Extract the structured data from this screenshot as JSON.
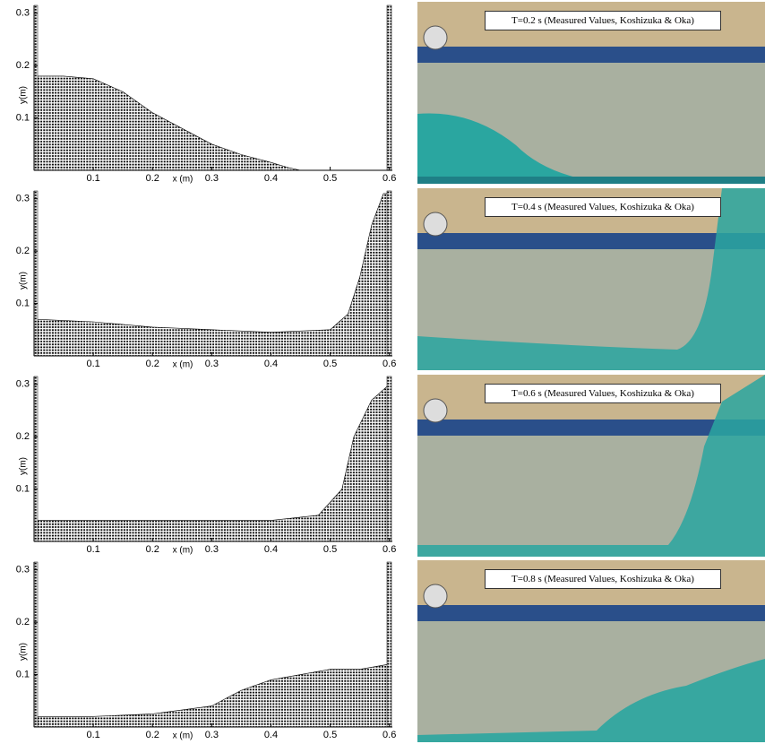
{
  "chart_data": [
    {
      "type": "area",
      "x_label": "x (m)",
      "y_label": "y(m)",
      "x": [
        0,
        0.05,
        0.1,
        0.15,
        0.2,
        0.25,
        0.3,
        0.35,
        0.4,
        0.43,
        0.45
      ],
      "values": [
        0.18,
        0.18,
        0.175,
        0.15,
        0.11,
        0.08,
        0.05,
        0.03,
        0.015,
        0.005,
        0
      ],
      "color": "#000000",
      "xlim": [
        0,
        0.605
      ],
      "ylim": [
        0,
        0.315
      ],
      "xticks": [
        0.1,
        0.2,
        0.3,
        0.4,
        0.5,
        0.6
      ],
      "yticks": [
        0.1,
        0.2,
        0.3
      ]
    },
    {
      "type": "area",
      "x_label": "x (m)",
      "y_label": "y(m)",
      "x": [
        0,
        0.1,
        0.2,
        0.3,
        0.4,
        0.5,
        0.53,
        0.55,
        0.57,
        0.59,
        0.6
      ],
      "values": [
        0.07,
        0.065,
        0.055,
        0.05,
        0.045,
        0.05,
        0.08,
        0.15,
        0.25,
        0.31,
        0.31
      ],
      "color": "#000000",
      "xlim": [
        0,
        0.605
      ],
      "ylim": [
        0,
        0.315
      ],
      "xticks": [
        0.1,
        0.2,
        0.3,
        0.4,
        0.5,
        0.6
      ],
      "yticks": [
        0.1,
        0.2,
        0.3
      ]
    },
    {
      "type": "area",
      "x_label": "x (m)",
      "y_label": "y(m)",
      "x": [
        0,
        0.2,
        0.4,
        0.48,
        0.52,
        0.54,
        0.57,
        0.6
      ],
      "values": [
        0.04,
        0.04,
        0.04,
        0.05,
        0.1,
        0.2,
        0.27,
        0.3
      ],
      "color": "#000000",
      "xlim": [
        0,
        0.605
      ],
      "ylim": [
        0,
        0.315
      ],
      "xticks": [
        0.1,
        0.2,
        0.3,
        0.4,
        0.5,
        0.6
      ],
      "yticks": [
        0.1,
        0.2,
        0.3
      ]
    },
    {
      "type": "area",
      "x_label": "x (m)",
      "y_label": "y(m)",
      "x": [
        0,
        0.1,
        0.2,
        0.3,
        0.35,
        0.4,
        0.45,
        0.5,
        0.55,
        0.6
      ],
      "values": [
        0.02,
        0.02,
        0.025,
        0.04,
        0.07,
        0.09,
        0.1,
        0.11,
        0.11,
        0.12
      ],
      "color": "#000000",
      "xlim": [
        0,
        0.605
      ],
      "ylim": [
        0,
        0.315
      ],
      "xticks": [
        0.1,
        0.2,
        0.3,
        0.4,
        0.5,
        0.6
      ],
      "yticks": [
        0.1,
        0.2,
        0.3
      ]
    }
  ],
  "photos": [
    {
      "caption": "T=0.2 s (Measured Values, Koshizuka & Oka)"
    },
    {
      "caption": "T=0.4 s (Measured Values, Koshizuka & Oka)"
    },
    {
      "caption": "T=0.6 s (Measured Values, Koshizuka & Oka)"
    },
    {
      "caption": "T=0.8 s (Measured Values, Koshizuka & Oka)"
    }
  ]
}
